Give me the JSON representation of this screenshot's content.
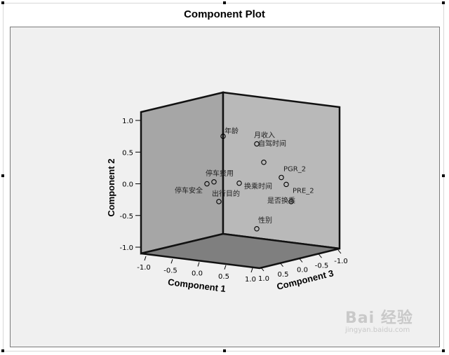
{
  "chart_data": {
    "type": "scatter",
    "title": "Component Plot",
    "projection": "3d",
    "axes": {
      "component_1": {
        "label": "Component 1",
        "range": [
          -1.0,
          1.0
        ],
        "ticks": [
          "-1.0",
          "-0.5",
          "0.0",
          "0.5",
          "1.0"
        ]
      },
      "component_2": {
        "label": "Component 2",
        "range": [
          -1.0,
          1.0
        ],
        "ticks": [
          "1.0",
          "0.5",
          "0.0",
          "-0.5",
          "-1.0"
        ]
      },
      "component_3": {
        "label": "Component 3",
        "range": [
          -1.0,
          1.0
        ],
        "ticks": [
          "1.0",
          "0.5",
          "0.0",
          "-0.5",
          "-1.0"
        ]
      }
    },
    "points": [
      {
        "label": "年龄",
        "c2": 0.75
      },
      {
        "label": "月收入",
        "c2": 0.63
      },
      {
        "label": "自驾时间",
        "c2": 0.34
      },
      {
        "label": "PGR_2",
        "c2": 0.1
      },
      {
        "label": "停车费用",
        "c2": 0.03
      },
      {
        "label": "停车安全",
        "c2": 0.0
      },
      {
        "label": "换乘时间",
        "c2": 0.01
      },
      {
        "label": "出行目的",
        "c2": -0.28
      },
      {
        "label": "PRE_2",
        "c2": -0.01
      },
      {
        "label": "是否换乘",
        "c2": -0.28
      },
      {
        "label": "性别",
        "c2": -0.71
      }
    ],
    "colors": {
      "plot_background": "#f0f0f0",
      "left_wall": "#a6a6a6",
      "back_wall": "#b9b9b9",
      "floor": "#7f7f7f",
      "marker": "#000000"
    }
  },
  "watermark": {
    "brand": "Bai 经验",
    "url": "jingyan.baidu.com"
  }
}
